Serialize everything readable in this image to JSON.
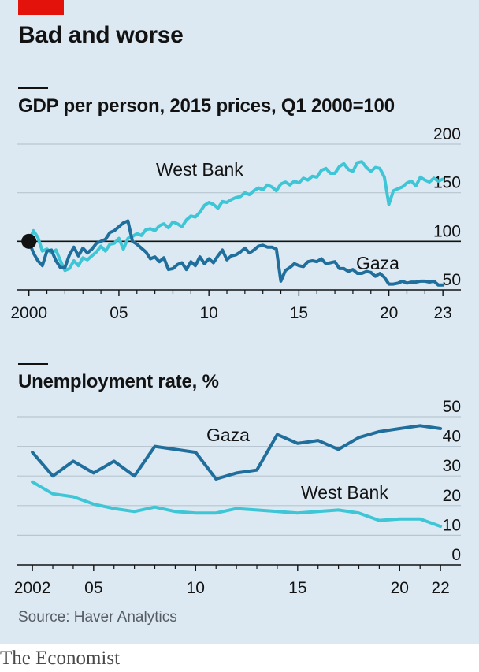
{
  "headline": "Bad and worse",
  "source": "Source: Haver Analytics",
  "brand": "The Economist",
  "colors": {
    "west_bank": "#3ec6d6",
    "gaza": "#1f6e9c",
    "accent": "#e3120b",
    "grid": "#b7c6d0"
  },
  "chart_data": [
    {
      "type": "line",
      "title": "GDP per person, 2015 prices, Q1 2000=100",
      "x_ticks": [
        2000,
        2005,
        2010,
        2015,
        2020,
        2023
      ],
      "x_tick_labels": [
        "2000",
        "05",
        "10",
        "15",
        "20",
        "23"
      ],
      "y_ticks": [
        50,
        100,
        150,
        200
      ],
      "ylim": [
        50,
        200
      ],
      "xlim": [
        1999.4,
        2024
      ],
      "grid": true,
      "annotations": [
        "West Bank",
        "Gaza"
      ],
      "baseline_marker": {
        "x": 2000,
        "y": 100
      },
      "series": [
        {
          "name": "West Bank",
          "x": [
            2000,
            2000.25,
            2000.5,
            2000.75,
            2001,
            2001.25,
            2001.5,
            2001.75,
            2002,
            2002.25,
            2002.5,
            2002.75,
            2003,
            2003.25,
            2003.5,
            2003.75,
            2004,
            2004.25,
            2004.5,
            2004.75,
            2005,
            2005.25,
            2005.5,
            2005.75,
            2006,
            2006.25,
            2006.5,
            2006.75,
            2007,
            2007.25,
            2007.5,
            2007.75,
            2008,
            2008.25,
            2008.5,
            2008.75,
            2009,
            2009.25,
            2009.5,
            2009.75,
            2010,
            2010.25,
            2010.5,
            2010.75,
            2011,
            2011.25,
            2011.5,
            2011.75,
            2012,
            2012.25,
            2012.5,
            2012.75,
            2013,
            2013.25,
            2013.5,
            2013.75,
            2014,
            2014.25,
            2014.5,
            2014.75,
            2015,
            2015.25,
            2015.5,
            2015.75,
            2016,
            2016.25,
            2016.5,
            2016.75,
            2017,
            2017.25,
            2017.5,
            2017.75,
            2018,
            2018.25,
            2018.5,
            2018.75,
            2019,
            2019.25,
            2019.5,
            2019.75,
            2020,
            2020.25,
            2020.5,
            2020.75,
            2021,
            2021.25,
            2021.5,
            2021.75,
            2022,
            2022.25,
            2022.5,
            2022.75,
            2023
          ],
          "values": [
            100,
            111,
            104,
            90,
            92,
            88,
            91,
            80,
            70,
            72,
            80,
            75,
            83,
            81,
            85,
            89,
            95,
            90,
            97,
            98,
            103,
            92,
            103,
            105,
            108,
            106,
            112,
            113,
            111,
            116,
            118,
            114,
            120,
            118,
            115,
            122,
            126,
            125,
            130,
            137,
            140,
            138,
            134,
            141,
            140,
            143,
            145,
            146,
            150,
            148,
            152,
            155,
            153,
            158,
            156,
            152,
            159,
            161,
            158,
            162,
            160,
            165,
            163,
            167,
            166,
            173,
            175,
            170,
            170,
            177,
            180,
            174,
            172,
            181,
            182,
            176,
            172,
            176,
            175,
            166,
            138,
            152,
            154,
            156,
            160,
            162,
            157,
            166,
            163,
            161,
            165,
            162,
            164
          ]
        },
        {
          "name": "Gaza",
          "x": [
            2000,
            2000.25,
            2000.5,
            2000.75,
            2001,
            2001.25,
            2001.5,
            2001.75,
            2002,
            2002.25,
            2002.5,
            2002.75,
            2003,
            2003.25,
            2003.5,
            2003.75,
            2004,
            2004.25,
            2004.5,
            2004.75,
            2005,
            2005.25,
            2005.5,
            2005.75,
            2006,
            2006.25,
            2006.5,
            2006.75,
            2007,
            2007.25,
            2007.5,
            2007.75,
            2008,
            2008.25,
            2008.5,
            2008.75,
            2009,
            2009.25,
            2009.5,
            2009.75,
            2010,
            2010.25,
            2010.5,
            2010.75,
            2011,
            2011.25,
            2011.5,
            2011.75,
            2012,
            2012.25,
            2012.5,
            2012.75,
            2013,
            2013.25,
            2013.5,
            2013.75,
            2014,
            2014.25,
            2014.5,
            2014.75,
            2015,
            2015.25,
            2015.5,
            2015.75,
            2016,
            2016.25,
            2016.5,
            2016.75,
            2017,
            2017.25,
            2017.5,
            2017.75,
            2018,
            2018.25,
            2018.5,
            2018.75,
            2019,
            2019.25,
            2019.5,
            2019.75,
            2020,
            2020.25,
            2020.5,
            2020.75,
            2021,
            2021.25,
            2021.5,
            2021.75,
            2022,
            2022.25,
            2022.5,
            2022.75,
            2023
          ],
          "values": [
            100,
            88,
            80,
            75,
            90,
            91,
            80,
            73,
            73,
            86,
            94,
            85,
            93,
            88,
            92,
            98,
            100,
            102,
            109,
            111,
            115,
            119,
            121,
            100,
            97,
            93,
            89,
            82,
            84,
            79,
            83,
            71,
            72,
            76,
            78,
            71,
            79,
            75,
            84,
            77,
            82,
            78,
            85,
            91,
            81,
            85,
            86,
            89,
            93,
            88,
            91,
            95,
            96,
            94,
            94,
            92,
            59,
            70,
            73,
            77,
            75,
            74,
            79,
            80,
            79,
            82,
            77,
            78,
            79,
            72,
            72,
            69,
            71,
            67,
            67,
            69,
            68,
            64,
            67,
            63,
            56,
            56,
            57,
            59,
            57,
            58,
            58,
            59,
            59,
            58,
            59,
            55,
            55
          ]
        }
      ]
    },
    {
      "type": "line",
      "title": "Unemployment rate, %",
      "x_ticks": [
        2002,
        2005,
        2010,
        2015,
        2020,
        2022
      ],
      "x_tick_labels": [
        "2002",
        "05",
        "10",
        "15",
        "20",
        "22"
      ],
      "y_ticks": [
        0,
        10,
        20,
        30,
        40,
        50
      ],
      "ylim": [
        0,
        50
      ],
      "xlim": [
        2001.3,
        2023
      ],
      "grid": true,
      "annotations": [
        "Gaza",
        "West Bank"
      ],
      "series": [
        {
          "name": "Gaza",
          "x": [
            2002,
            2003,
            2004,
            2005,
            2006,
            2007,
            2008,
            2009,
            2010,
            2011,
            2012,
            2013,
            2014,
            2015,
            2016,
            2017,
            2018,
            2019,
            2020,
            2021,
            2022
          ],
          "values": [
            38,
            30,
            35,
            31,
            35,
            30,
            40,
            39,
            38,
            29,
            31,
            32,
            44,
            41,
            42,
            39,
            43,
            45,
            46,
            47,
            46
          ]
        },
        {
          "name": "West Bank",
          "x": [
            2002,
            2003,
            2004,
            2005,
            2006,
            2007,
            2008,
            2009,
            2010,
            2011,
            2012,
            2013,
            2014,
            2015,
            2016,
            2017,
            2018,
            2019,
            2020,
            2021,
            2022
          ],
          "values": [
            28,
            24,
            23,
            20.5,
            19,
            18,
            19.5,
            18,
            17.5,
            17.5,
            19,
            18.5,
            18,
            17.5,
            18,
            18.5,
            17.5,
            15,
            15.5,
            15.5,
            13
          ]
        }
      ]
    }
  ]
}
